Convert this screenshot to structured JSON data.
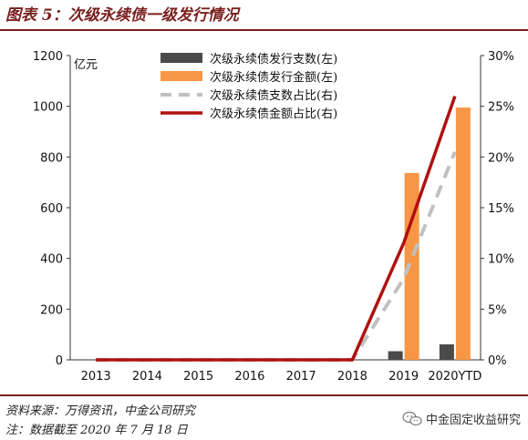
{
  "header": {
    "title": "图表 5：次级永续债一级发行情况"
  },
  "footer": {
    "source": "资料来源：万得资讯，中金公司研究",
    "note": "注：数据截至 2020 年 7 月 18 日",
    "watermark": "中金固定收益研究",
    "watermark_icon": "wechat-icon"
  },
  "chart_data": {
    "type": "bar",
    "categories": [
      "2013",
      "2014",
      "2015",
      "2016",
      "2017",
      "2018",
      "2019",
      "2020YTD"
    ],
    "left_axis": {
      "unit": "亿元",
      "ylim": [
        0,
        1200
      ],
      "ticks": [
        "0",
        "200",
        "400",
        "600",
        "800",
        "1000",
        "1200"
      ]
    },
    "right_axis": {
      "ylim": [
        0,
        30
      ],
      "ticks": [
        "0%",
        "5%",
        "10%",
        "15%",
        "20%",
        "25%",
        "30%"
      ]
    },
    "series": [
      {
        "name": "次级永续债发行支数(左)",
        "type": "bar",
        "axis": "left",
        "color": "#4a4a4a",
        "values": [
          0,
          0,
          0,
          0,
          0,
          0,
          34,
          61
        ]
      },
      {
        "name": "次级永续债发行金额(左)",
        "type": "bar",
        "axis": "left",
        "color": "#f79646",
        "values": [
          0,
          0,
          0,
          0,
          0,
          0,
          737,
          995
        ]
      },
      {
        "name": "次级永续债支数占比(右)",
        "type": "line",
        "axis": "right",
        "color": "#c0c0c0",
        "dashed": true,
        "values": [
          0,
          0,
          0,
          0,
          0,
          0,
          8,
          20.5
        ]
      },
      {
        "name": "次级永续债金额占比(右)",
        "type": "line",
        "axis": "right",
        "color": "#b01010",
        "dashed": false,
        "values": [
          0,
          0,
          0,
          0,
          0,
          0,
          11.5,
          26
        ]
      }
    ],
    "grid": false,
    "legend_position": "top-center"
  }
}
